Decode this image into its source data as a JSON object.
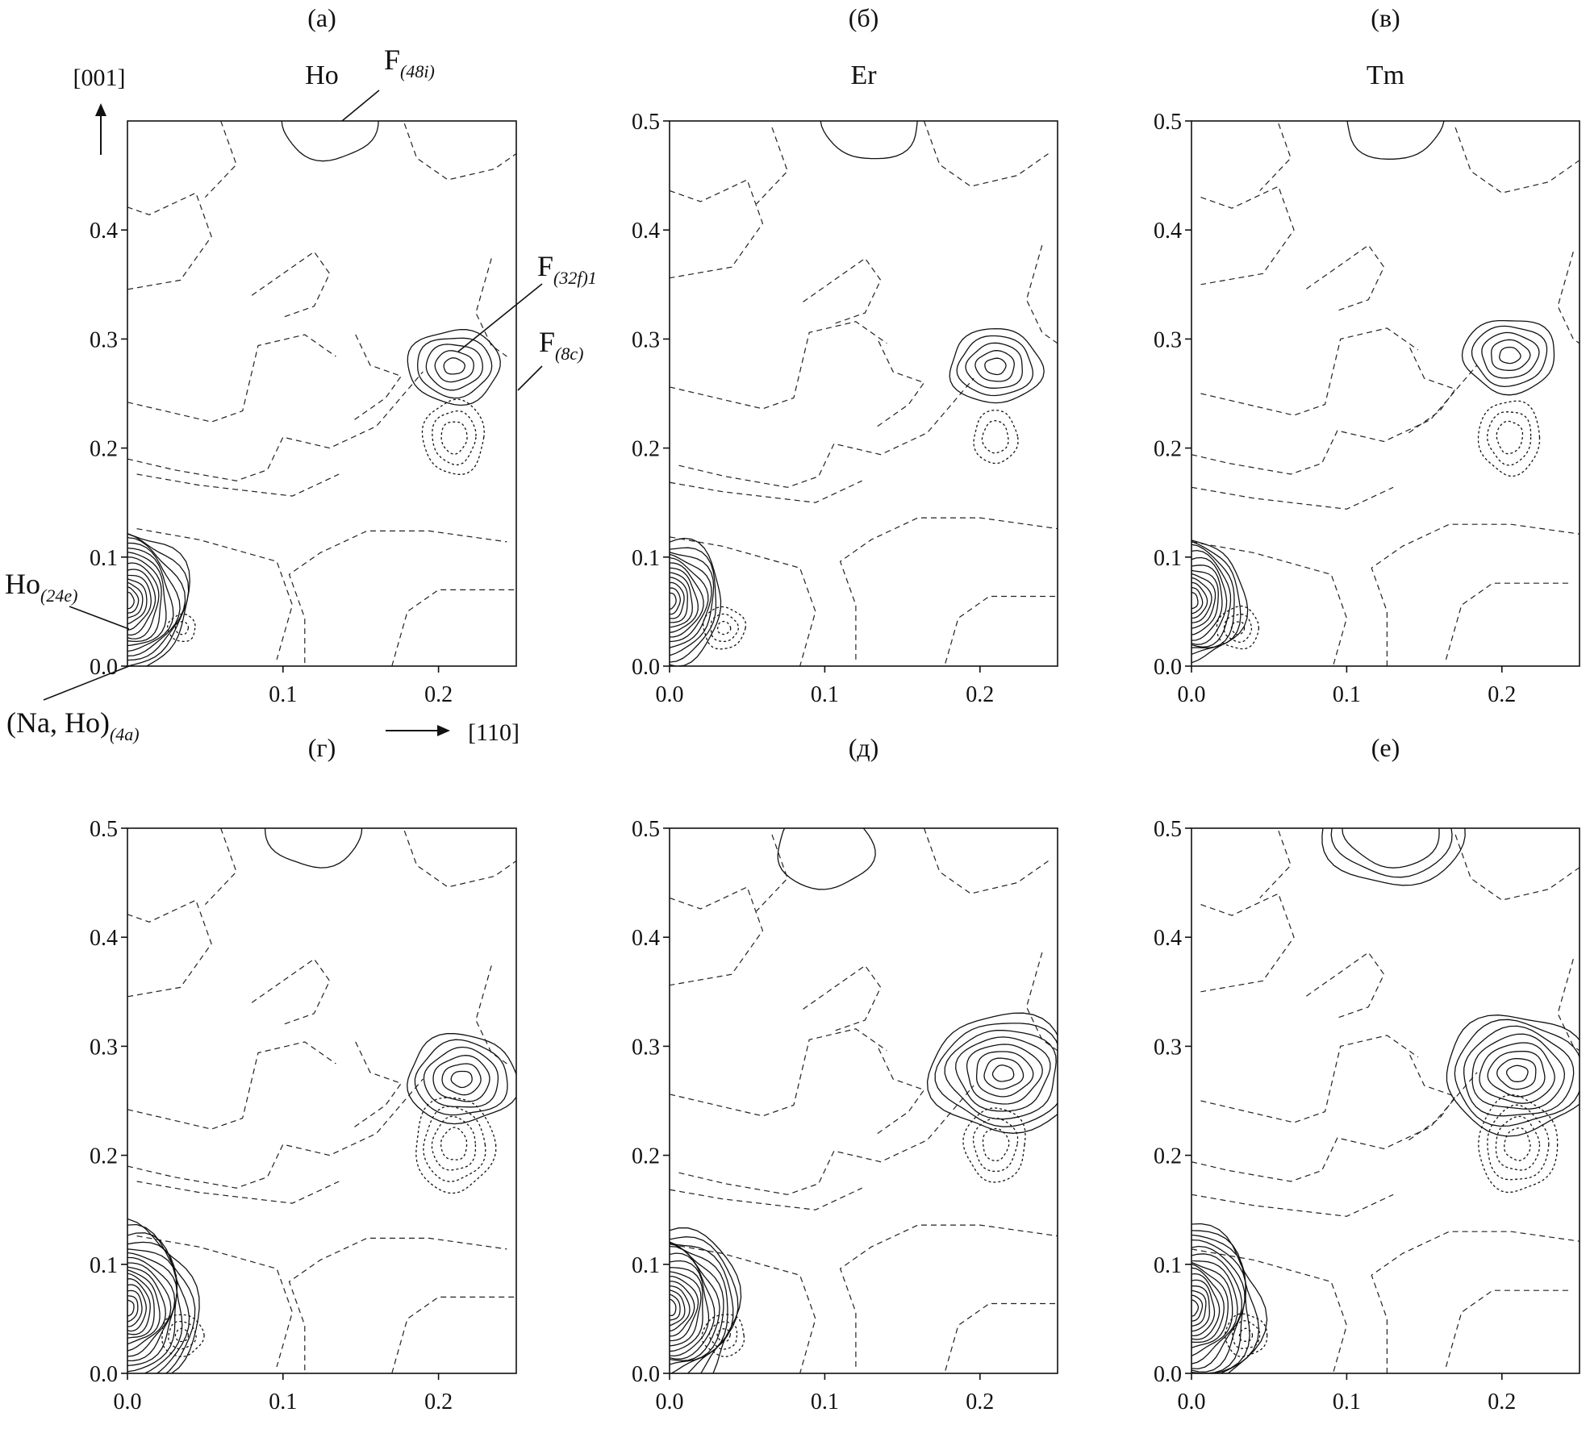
{
  "figure": {
    "direction_labels": {
      "vertical": "[001]",
      "horizontal": "[110]"
    },
    "annotations": [
      {
        "base": "F",
        "sub": "(48i)",
        "target": "F-48i"
      },
      {
        "base": "F",
        "sub": "(32f)1",
        "target": "F-32f1"
      },
      {
        "base": "F",
        "sub": "(8c)",
        "target": "F-8c"
      },
      {
        "base": "Ho",
        "sub": "(24e)",
        "target": "Ho-24e"
      },
      {
        "base": "(Na, Ho)",
        "sub": "(4a)",
        "target": "NaHo-4a"
      }
    ]
  },
  "chart_data": [
    {
      "panel": "(а)",
      "element": "Ho",
      "type": "contour",
      "xlim": [
        0,
        0.25
      ],
      "ylim": [
        0,
        0.5
      ],
      "x_ticks": [
        "0.1",
        "0.2"
      ],
      "y_ticks": [
        "0.0",
        "0.1",
        "0.2",
        "0.3",
        "0.4"
      ],
      "peaks": [
        {
          "sign": "positive",
          "x": 0.0,
          "y": 0.06,
          "levels": 14
        },
        {
          "sign": "positive",
          "x": 0.21,
          "y": 0.275,
          "levels": 5
        },
        {
          "sign": "positive",
          "x": 0.13,
          "y": 0.5,
          "levels": 1
        },
        {
          "sign": "negative",
          "x": 0.21,
          "y": 0.21,
          "levels": 3
        },
        {
          "sign": "negative",
          "x": 0.035,
          "y": 0.035,
          "levels": 2
        }
      ]
    },
    {
      "panel": "(б)",
      "element": "Er",
      "type": "contour",
      "xlim": [
        0,
        0.25
      ],
      "ylim": [
        0,
        0.5
      ],
      "x_ticks": [
        "0.0",
        "0.1",
        "0.2"
      ],
      "y_ticks": [
        "0.0",
        "0.1",
        "0.2",
        "0.3",
        "0.4",
        "0.5"
      ],
      "peaks": [
        {
          "sign": "positive",
          "x": 0.0,
          "y": 0.06,
          "levels": 12
        },
        {
          "sign": "positive",
          "x": 0.21,
          "y": 0.275,
          "levels": 5
        },
        {
          "sign": "positive",
          "x": 0.13,
          "y": 0.5,
          "levels": 1
        },
        {
          "sign": "negative",
          "x": 0.21,
          "y": 0.21,
          "levels": 2
        },
        {
          "sign": "negative",
          "x": 0.035,
          "y": 0.035,
          "levels": 3
        }
      ]
    },
    {
      "panel": "(в)",
      "element": "Tm",
      "type": "contour",
      "xlim": [
        0,
        0.25
      ],
      "ylim": [
        0,
        0.5
      ],
      "x_ticks": [
        "0.0",
        "0.1",
        "0.2"
      ],
      "y_ticks": [
        "0.0",
        "0.1",
        "0.2",
        "0.3",
        "0.4",
        "0.5"
      ],
      "peaks": [
        {
          "sign": "positive",
          "x": 0.0,
          "y": 0.06,
          "levels": 12
        },
        {
          "sign": "positive",
          "x": 0.205,
          "y": 0.285,
          "levels": 5
        },
        {
          "sign": "positive",
          "x": 0.13,
          "y": 0.5,
          "levels": 1
        },
        {
          "sign": "negative",
          "x": 0.205,
          "y": 0.21,
          "levels": 3
        },
        {
          "sign": "negative",
          "x": 0.03,
          "y": 0.035,
          "levels": 3
        }
      ]
    },
    {
      "panel": "(г)",
      "element": "",
      "type": "contour",
      "xlim": [
        0,
        0.25
      ],
      "ylim": [
        0,
        0.5
      ],
      "x_ticks": [
        "0.0",
        "0.1",
        "0.2"
      ],
      "y_ticks": [
        "0.0",
        "0.1",
        "0.2",
        "0.3",
        "0.4",
        "0.5"
      ],
      "peaks": [
        {
          "sign": "positive",
          "x": 0.0,
          "y": 0.06,
          "levels": 16
        },
        {
          "sign": "positive",
          "x": 0.215,
          "y": 0.27,
          "levels": 6
        },
        {
          "sign": "positive",
          "x": 0.12,
          "y": 0.5,
          "levels": 1
        },
        {
          "sign": "negative",
          "x": 0.21,
          "y": 0.21,
          "levels": 4
        },
        {
          "sign": "negative",
          "x": 0.035,
          "y": 0.035,
          "levels": 3
        }
      ]
    },
    {
      "panel": "(д)",
      "element": "",
      "type": "contour",
      "xlim": [
        0,
        0.25
      ],
      "ylim": [
        0,
        0.5
      ],
      "x_ticks": [
        "0.0",
        "0.1",
        "0.2"
      ],
      "y_ticks": [
        "0.0",
        "0.1",
        "0.2",
        "0.3",
        "0.4",
        "0.5"
      ],
      "peaks": [
        {
          "sign": "positive",
          "x": 0.0,
          "y": 0.06,
          "levels": 16
        },
        {
          "sign": "positive",
          "x": 0.215,
          "y": 0.275,
          "levels": 8
        },
        {
          "sign": "positive",
          "x": 0.1,
          "y": 0.48,
          "levels": 1
        },
        {
          "sign": "negative",
          "x": 0.21,
          "y": 0.21,
          "levels": 3
        },
        {
          "sign": "negative",
          "x": 0.035,
          "y": 0.035,
          "levels": 3
        }
      ]
    },
    {
      "panel": "(е)",
      "element": "",
      "type": "contour",
      "xlim": [
        0,
        0.25
      ],
      "ylim": [
        0,
        0.5
      ],
      "x_ticks": [
        "0.0",
        "0.1",
        "0.2"
      ],
      "y_ticks": [
        "0.0",
        "0.1",
        "0.2",
        "0.3",
        "0.4",
        "0.5"
      ],
      "peaks": [
        {
          "sign": "positive",
          "x": 0.0,
          "y": 0.06,
          "levels": 16
        },
        {
          "sign": "positive",
          "x": 0.21,
          "y": 0.275,
          "levels": 8
        },
        {
          "sign": "positive",
          "x": 0.13,
          "y": 0.5,
          "levels": 3
        },
        {
          "sign": "negative",
          "x": 0.21,
          "y": 0.21,
          "levels": 4
        },
        {
          "sign": "negative",
          "x": 0.035,
          "y": 0.035,
          "levels": 3
        }
      ]
    }
  ]
}
